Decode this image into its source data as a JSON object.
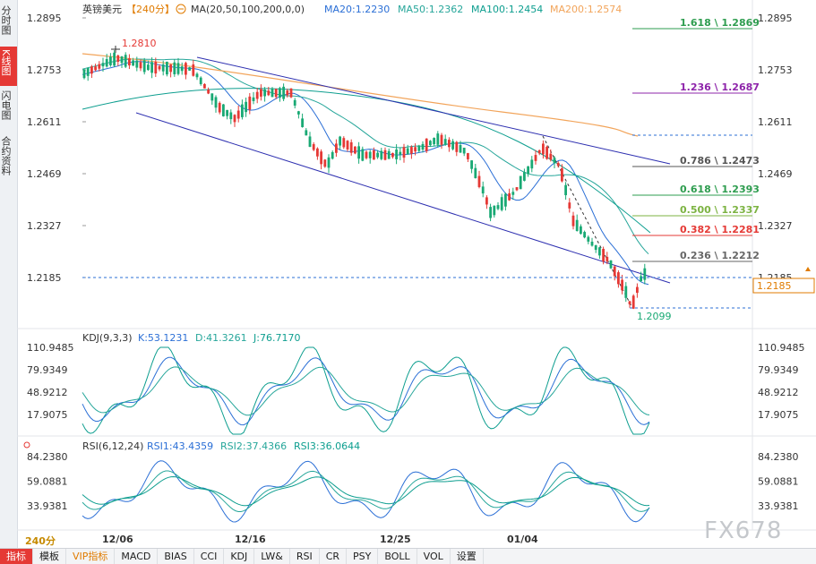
{
  "sidebar": {
    "tabs": [
      {
        "label": "分时图",
        "active": false
      },
      {
        "label": "K线图",
        "active": true
      },
      {
        "label": "闪电图",
        "active": false
      },
      {
        "label": "合约资料",
        "active": false
      }
    ]
  },
  "header": {
    "symbol": "英镑美元",
    "period": "【240分】",
    "ma_label": "MA(20,50,100,200,0,0)",
    "ma20": "MA20:1.2230",
    "ma50": "MA50:1.2362",
    "ma100": "MA100:1.2454",
    "ma200": "MA200:1.2574"
  },
  "price_axis": {
    "ticks": [
      "1.2895",
      "1.2753",
      "1.2611",
      "1.2469",
      "1.2327",
      "1.2185"
    ],
    "current": "1.2185"
  },
  "annotations": {
    "high_label": "1.2810",
    "low_label": "1.2099"
  },
  "fib_levels": [
    {
      "label": "1.618 \\ 1.2869",
      "color": "#2e9d4f"
    },
    {
      "label": "1.236 \\ 1.2687",
      "color": "#8e24aa"
    },
    {
      "label": "0.786 \\ 1.2473",
      "color": "#555555"
    },
    {
      "label": "0.618 \\ 1.2393",
      "color": "#2e9d4f"
    },
    {
      "label": "0.500 \\ 1.2337",
      "color": "#7cb342"
    },
    {
      "label": "0.382 \\ 1.2281",
      "color": "#e53935"
    },
    {
      "label": "0.236 \\ 1.2212",
      "color": "#666666"
    }
  ],
  "kdj": {
    "label": "KDJ(9,3,3)",
    "k": "K:53.1231",
    "d": "D:41.3261",
    "j": "J:76.7170",
    "ticks": [
      "110.9485",
      "79.9349",
      "48.9212",
      "17.9075"
    ]
  },
  "rsi": {
    "label": "RSI(6,12,24)",
    "rsi1": "RSI1:43.4359",
    "rsi2": "RSI2:37.4366",
    "rsi3": "RSI3:36.0644",
    "ticks": [
      "84.2380",
      "59.0881",
      "33.9381"
    ]
  },
  "date_axis": [
    "12/06",
    "12/16",
    "12/25",
    "01/04"
  ],
  "period_badge": "240分",
  "bottom_tabs": [
    {
      "label": "指标",
      "active": true
    },
    {
      "label": "模板",
      "active": false
    },
    {
      "label": "VIP指标",
      "active": false,
      "vip": true
    },
    {
      "label": "MACD",
      "active": false
    },
    {
      "label": "BIAS",
      "active": false
    },
    {
      "label": "CCI",
      "active": false
    },
    {
      "label": "KDJ",
      "active": false
    },
    {
      "label": "LW&",
      "active": false
    },
    {
      "label": "RSI",
      "active": false
    },
    {
      "label": "CR",
      "active": false
    },
    {
      "label": "PSY",
      "active": false
    },
    {
      "label": "BOLL",
      "active": false
    },
    {
      "label": "VOL",
      "active": false
    },
    {
      "label": "设置",
      "active": false
    }
  ],
  "watermark": "FX678",
  "colors": {
    "up": "#e53935",
    "down": "#19a974",
    "ma20": "#2b6fd6",
    "ma50": "#26a69a",
    "ma100": "#0d9e8f",
    "ma200": "#f2a45a",
    "channel": "#2d2fb0"
  }
}
